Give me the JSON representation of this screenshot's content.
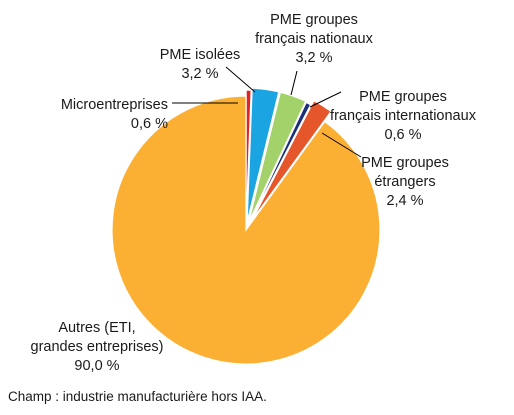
{
  "chart_data": {
    "type": "pie",
    "start_angle_deg": 0,
    "direction": "clockwise",
    "slices": [
      {
        "key": "microentreprises",
        "lines": [
          "Microentreprises",
          "0,6 %"
        ],
        "value": 0.6,
        "color": "#e32322"
      },
      {
        "key": "pme-isolees",
        "lines": [
          "PME isolées",
          "3,2 %"
        ],
        "value": 3.2,
        "color": "#1ba4e2"
      },
      {
        "key": "pme-groupes-francais-nationaux",
        "lines": [
          "PME groupes",
          "français nationaux",
          "3,2 %"
        ],
        "value": 3.2,
        "color": "#a3d26b"
      },
      {
        "key": "pme-groupes-francais-internationaux",
        "lines": [
          "PME groupes",
          "français internationaux",
          "0,6 %"
        ],
        "value": 0.6,
        "color": "#1c2f7a"
      },
      {
        "key": "pme-groupes-etrangers",
        "lines": [
          "PME groupes",
          "étrangers",
          "2,4 %"
        ],
        "value": 2.4,
        "color": "#e5562b"
      },
      {
        "key": "autres",
        "lines": [
          "Autres (ETI,",
          "grandes entreprises)",
          "90,0 %"
        ],
        "value": 90.0,
        "color": "#fbb034"
      }
    ]
  },
  "note": "Champ : industrie manufacturière hors IAA."
}
